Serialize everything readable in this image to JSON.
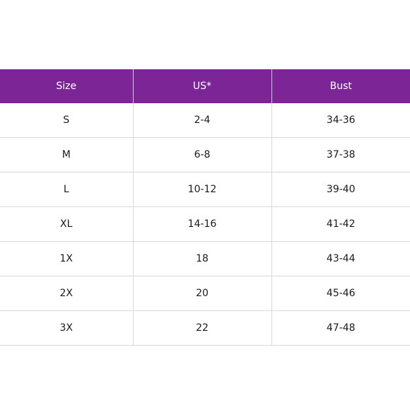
{
  "table": {
    "headers": [
      "Size",
      "US*",
      "Bust"
    ],
    "rows": [
      [
        "S",
        "2-4",
        "34-36"
      ],
      [
        "M",
        "6-8",
        "37-38"
      ],
      [
        "L",
        "10-12",
        "39-40"
      ],
      [
        "XL",
        "14-16",
        "41-42"
      ],
      [
        "1X",
        "18",
        "43-44"
      ],
      [
        "2X",
        "20",
        "45-46"
      ],
      [
        "3X",
        "22",
        "47-48"
      ]
    ],
    "header_color": "#7b2596"
  }
}
